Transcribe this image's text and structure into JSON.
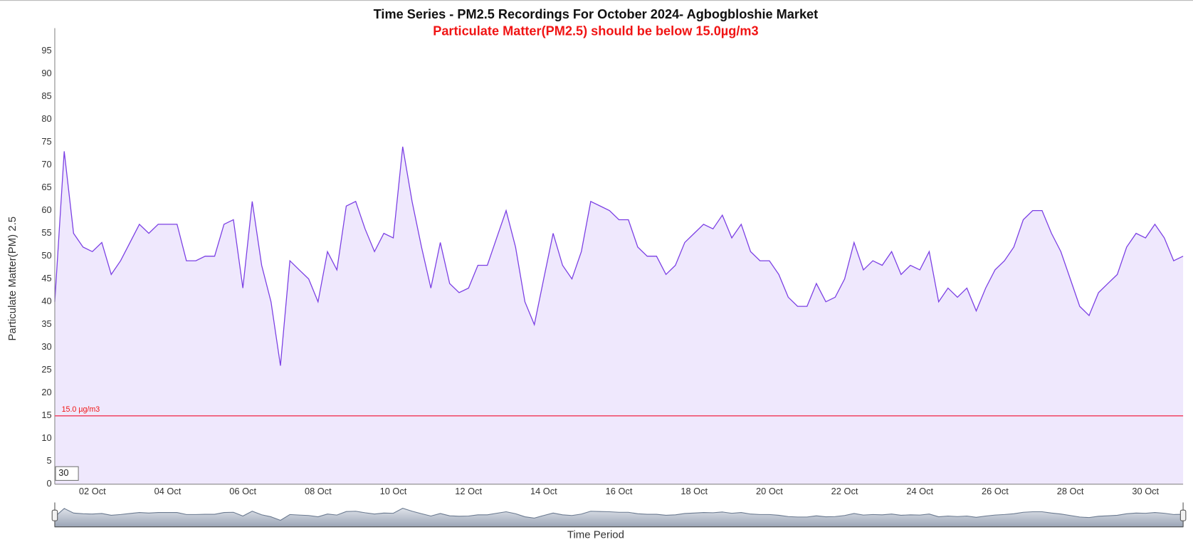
{
  "chart_data": {
    "type": "area",
    "title": "Time Series - PM2.5 Recordings For October 2024- Agbogbloshie Market",
    "subtitle": "Particulate Matter(PM2.5) should be below 15.0µg/m3",
    "y_label": "Particulate Matter(PM) 2.5",
    "x_label": "Time Period",
    "zoom_input": 30,
    "threshold": {
      "value": 15,
      "label": "15.0 µg/m3",
      "color": "#f0506e"
    },
    "xlim": [
      1,
      31
    ],
    "ylim": [
      0,
      100
    ],
    "yticks": [
      0,
      5,
      10,
      15,
      20,
      25,
      30,
      35,
      40,
      45,
      50,
      55,
      60,
      65,
      70,
      75,
      80,
      85,
      90,
      95
    ],
    "xticks": [
      {
        "value": 2,
        "label": "02 Oct"
      },
      {
        "value": 4,
        "label": "04 Oct"
      },
      {
        "value": 6,
        "label": "06 Oct"
      },
      {
        "value": 8,
        "label": "08 Oct"
      },
      {
        "value": 10,
        "label": "10 Oct"
      },
      {
        "value": 12,
        "label": "12 Oct"
      },
      {
        "value": 14,
        "label": "14 Oct"
      },
      {
        "value": 16,
        "label": "16 Oct"
      },
      {
        "value": 18,
        "label": "18 Oct"
      },
      {
        "value": 20,
        "label": "20 Oct"
      },
      {
        "value": 22,
        "label": "22 Oct"
      },
      {
        "value": 24,
        "label": "24 Oct"
      },
      {
        "value": 26,
        "label": "26 Oct"
      },
      {
        "value": 28,
        "label": "28 Oct"
      },
      {
        "value": 30,
        "label": "30 Oct"
      }
    ],
    "grid": false,
    "x": [
      1,
      1.25,
      1.5,
      1.75,
      2,
      2.25,
      2.5,
      2.75,
      3,
      3.25,
      3.5,
      3.75,
      4,
      4.25,
      4.5,
      4.75,
      5,
      5.25,
      5.5,
      5.75,
      6,
      6.25,
      6.5,
      6.75,
      7,
      7.25,
      7.5,
      7.75,
      8,
      8.25,
      8.5,
      8.75,
      9,
      9.25,
      9.5,
      9.75,
      10,
      10.25,
      10.5,
      10.75,
      11,
      11.25,
      11.5,
      11.75,
      12,
      12.25,
      12.5,
      12.75,
      13,
      13.25,
      13.5,
      13.75,
      14,
      14.25,
      14.5,
      14.75,
      15,
      15.25,
      15.5,
      15.75,
      16,
      16.25,
      16.5,
      16.75,
      17,
      17.25,
      17.5,
      17.75,
      18,
      18.25,
      18.5,
      18.75,
      19,
      19.25,
      19.5,
      19.75,
      20,
      20.25,
      20.5,
      20.75,
      21,
      21.25,
      21.5,
      21.75,
      22,
      22.25,
      22.5,
      22.75,
      23,
      23.25,
      23.5,
      23.75,
      24,
      24.25,
      24.5,
      24.75,
      25,
      25.25,
      25.5,
      25.75,
      26,
      26.25,
      26.5,
      26.75,
      27,
      27.25,
      27.5,
      27.75,
      28,
      28.25,
      28.5,
      28.75,
      29,
      29.25,
      29.5,
      29.75,
      30,
      30.25,
      30.5,
      30.75,
      31
    ],
    "series": [
      {
        "color": "#7b3fe4",
        "fill": "#efe8fd",
        "values": [
          40,
          73,
          55,
          52,
          51,
          53,
          46,
          49,
          53,
          57,
          55,
          57,
          57,
          57,
          49,
          49,
          50,
          50,
          57,
          58,
          43,
          62,
          48,
          40,
          26,
          49,
          47,
          45,
          40,
          51,
          47,
          61,
          62,
          56,
          51,
          55,
          54,
          74,
          62,
          52,
          43,
          53,
          44,
          42,
          43,
          48,
          48,
          54,
          60,
          52,
          40,
          35,
          45,
          55,
          48,
          45,
          51,
          62,
          61,
          60,
          58,
          58,
          52,
          50,
          50,
          46,
          48,
          53,
          55,
          57,
          56,
          59,
          54,
          57,
          51,
          49,
          49,
          46,
          41,
          39,
          39,
          44,
          40,
          41,
          45,
          53,
          47,
          49,
          48,
          51,
          46,
          48,
          47,
          51,
          40,
          43,
          41,
          43,
          38,
          43,
          47,
          49,
          52,
          58,
          60,
          60,
          55,
          51,
          45,
          39,
          37,
          42,
          44,
          46,
          52,
          55,
          54,
          57,
          54,
          49,
          50
        ]
      }
    ]
  }
}
